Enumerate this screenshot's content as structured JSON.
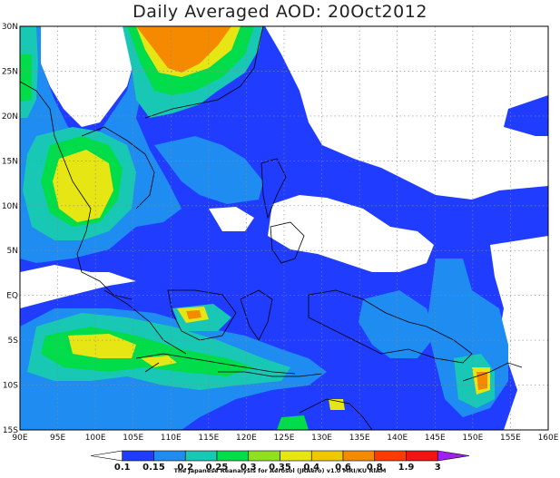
{
  "title": "Daily Averaged AOD: 20Oct2012",
  "credit": "The Japanese Reanalysis for Aerosol (JRAero) v1.0 MRI/KU RIAM",
  "map": {
    "lon_range": [
      90,
      160
    ],
    "lat_range": [
      -15,
      30
    ],
    "lon_ticks": [
      "90E",
      "95E",
      "100E",
      "105E",
      "110E",
      "115E",
      "120E",
      "125E",
      "130E",
      "135E",
      "140E",
      "145E",
      "150E",
      "155E",
      "160E"
    ],
    "lat_ticks": [
      "30N",
      "25N",
      "20N",
      "15N",
      "10N",
      "5N",
      "EQ",
      "5S",
      "10S",
      "15S"
    ]
  },
  "colorbar": {
    "levels": [
      "0.1",
      "0.15",
      "0.2",
      "0.25",
      "0.3",
      "0.35",
      "0.4",
      "0.6",
      "0.8",
      "1.9",
      "3"
    ],
    "colors": [
      "#ffffff",
      "#1f3cff",
      "#1e8cf0",
      "#18c8b4",
      "#00dc4a",
      "#90e020",
      "#e6e614",
      "#f0c800",
      "#f58a00",
      "#ff3c00",
      "#f01414",
      "#a020f0"
    ]
  }
}
